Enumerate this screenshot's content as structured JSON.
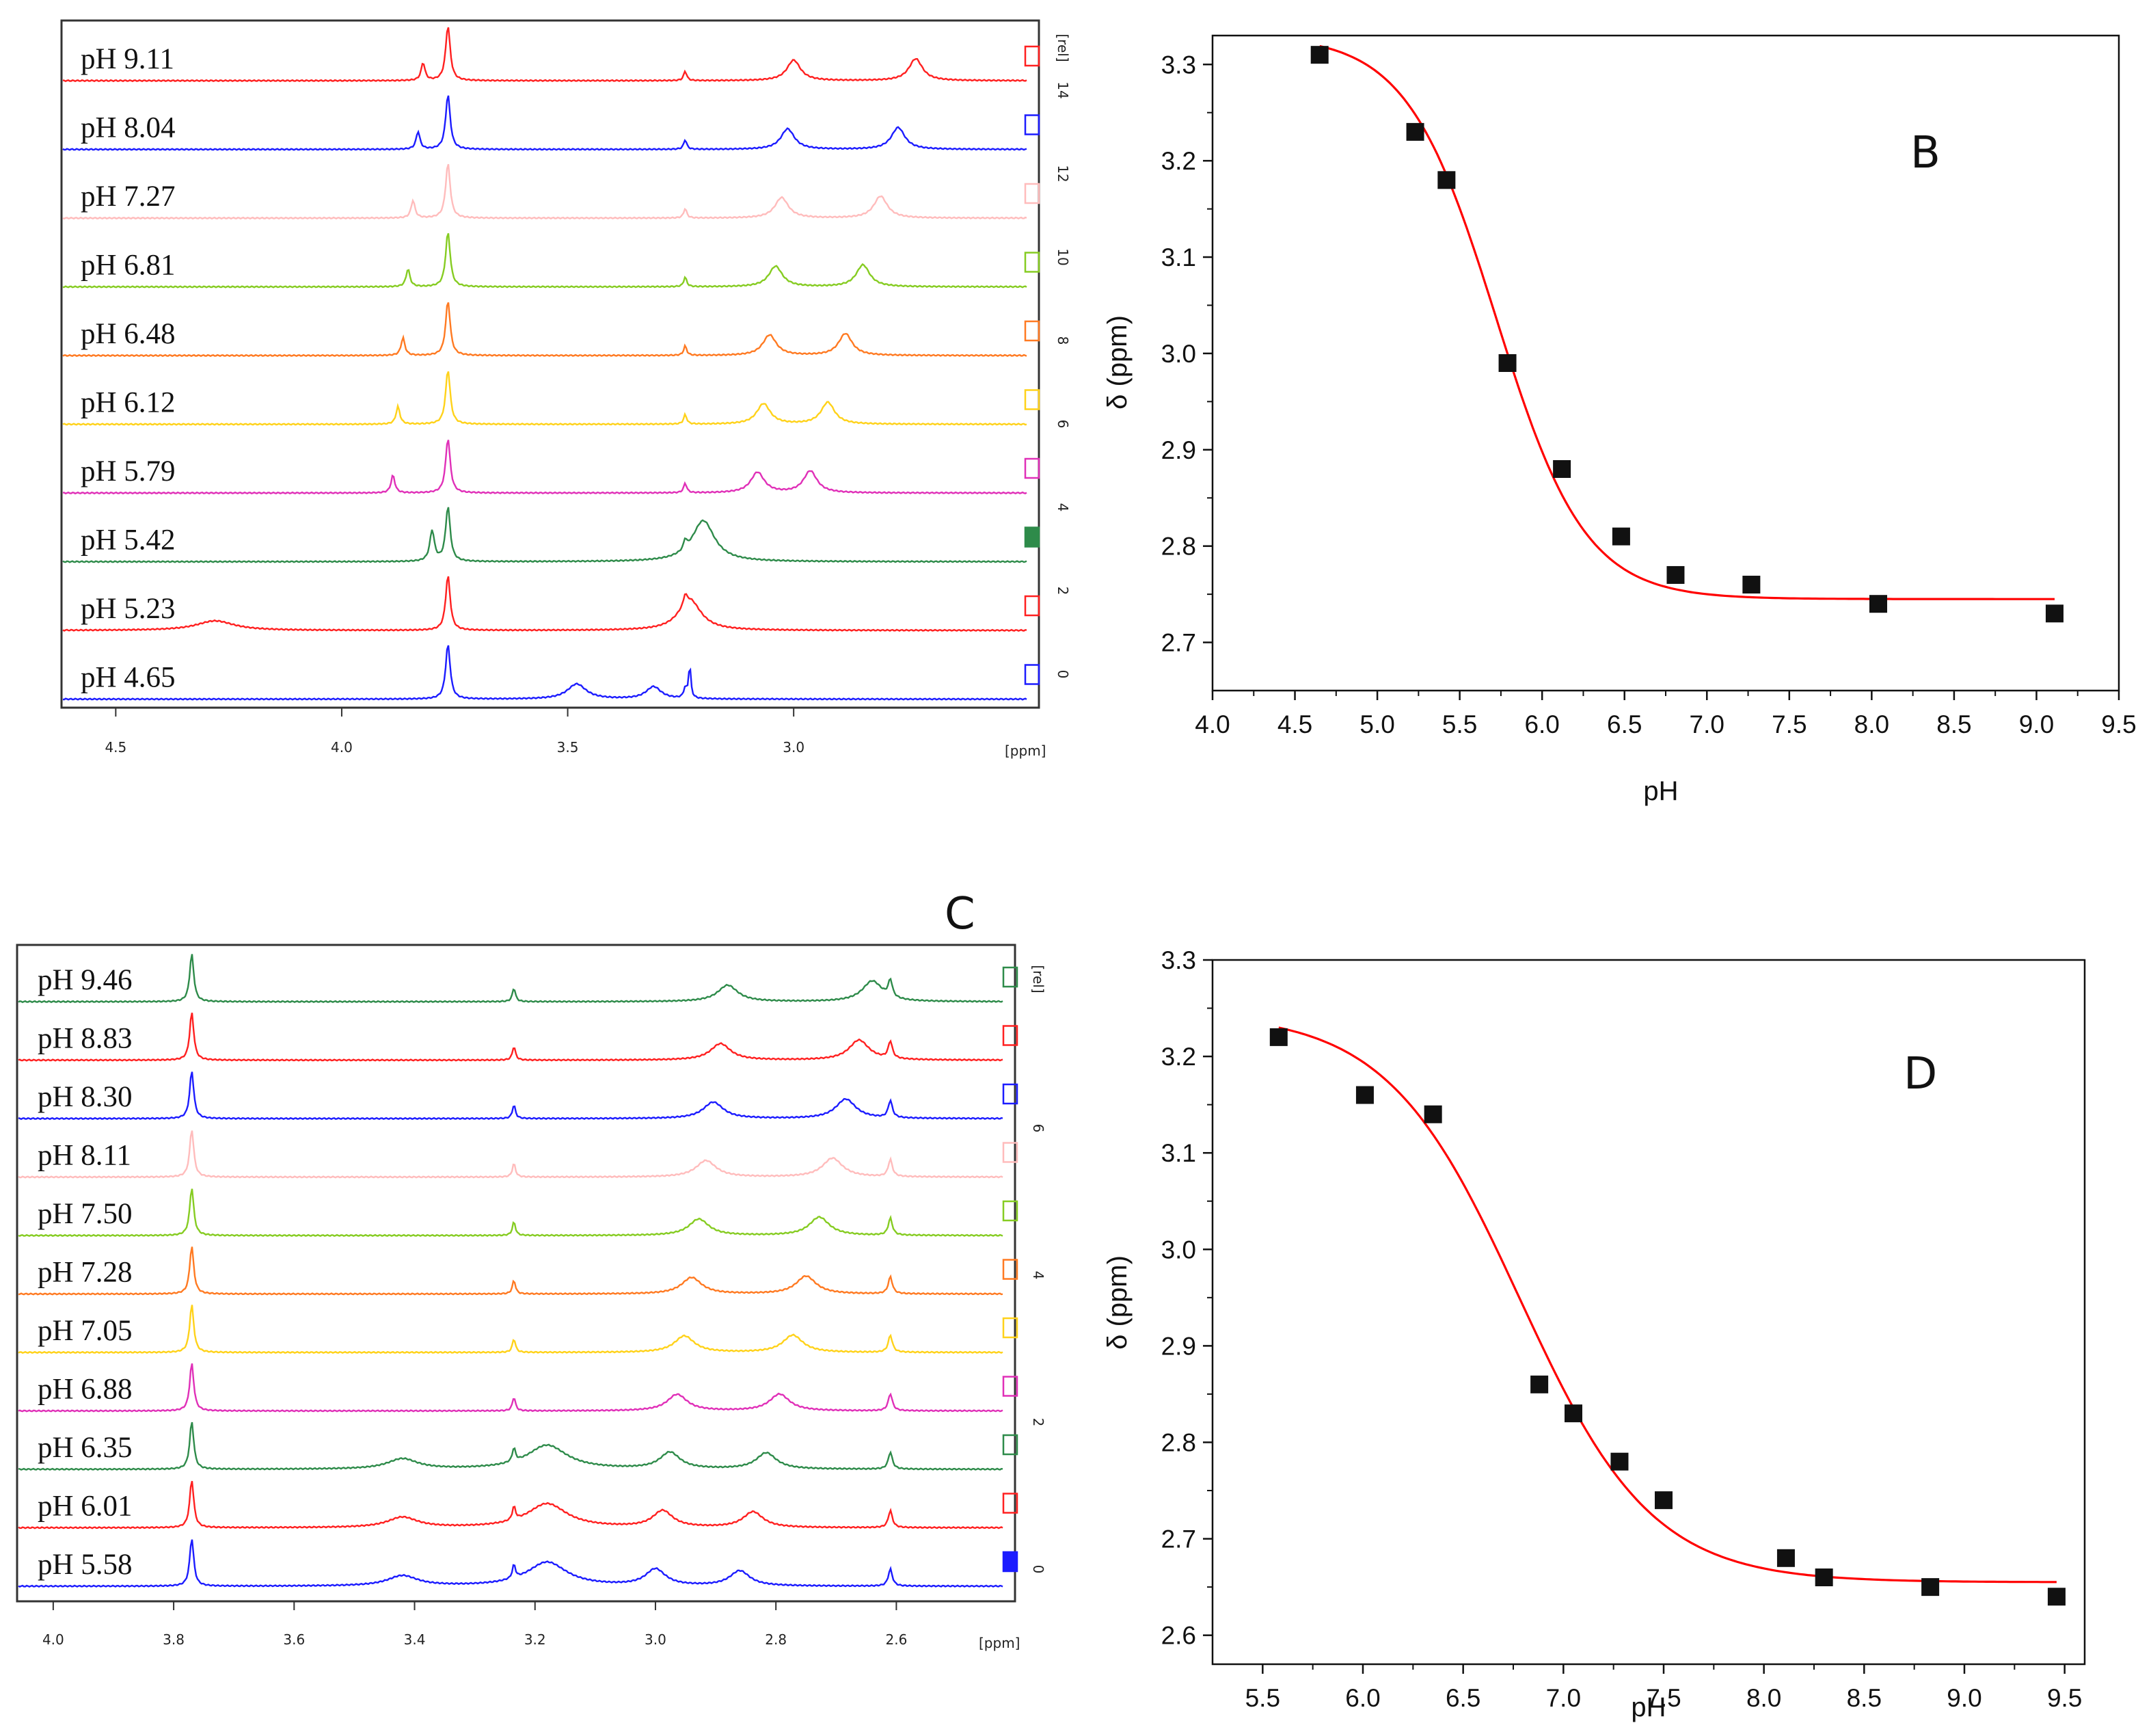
{
  "panel_a": {
    "ph_labels": [
      "pH 9.11",
      "pH 8.04",
      "pH 7.27",
      "pH 6.81",
      "pH 6.48",
      "pH 6.12",
      "pH 5.79",
      "pH 5.42",
      "pH 5.23",
      "pH 4.65"
    ],
    "colors": [
      "#ff2020",
      "#1c1cff",
      "#ffbcbc",
      "#86cc22",
      "#ff7a22",
      "#ffd21a",
      "#e030b8",
      "#2e8b4a",
      "#ff2020",
      "#1c1cff"
    ],
    "x_ticks": [
      "4.5",
      "4.0",
      "3.5",
      "3.0"
    ],
    "x_unit": "[ppm]",
    "right_scale_ticks": [
      "14",
      "12",
      "10",
      "8",
      "6",
      "4",
      "2",
      "0"
    ],
    "right_scale_unit": "[rel]"
  },
  "panel_c": {
    "letter": "C",
    "ph_labels": [
      "pH 9.46",
      "pH 8.83",
      "pH 8.30",
      "pH 8.11",
      "pH 7.50",
      "pH 7.28",
      "pH 7.05",
      "pH 6.88",
      "pH 6.35",
      "pH 6.01",
      "pH 5.58"
    ],
    "colors": [
      "#2e8b4a",
      "#ff2020",
      "#1c1cff",
      "#ffbcbc",
      "#86cc22",
      "#ff7a22",
      "#ffd21a",
      "#e030b8",
      "#2e8b4a",
      "#ff2020",
      "#1c1cff"
    ],
    "x_ticks": [
      "4.0",
      "3.8",
      "3.6",
      "3.4",
      "3.2",
      "3.0",
      "2.8",
      "2.6"
    ],
    "x_unit": "[ppm]",
    "right_scale_ticks": [
      "6",
      "4",
      "2",
      "0"
    ],
    "right_scale_unit": "[rel]"
  },
  "chart_data": [
    {
      "type": "scatter",
      "panel": "B",
      "xlabel": "pH",
      "ylabel": "δ (ppm)",
      "xlim": [
        4.0,
        9.5
      ],
      "ylim": [
        2.65,
        3.33
      ],
      "x_ticks": [
        "4.0",
        "4.5",
        "5.0",
        "5.5",
        "6.0",
        "6.5",
        "7.0",
        "7.5",
        "8.0",
        "8.5",
        "9.0",
        "9.5"
      ],
      "y_ticks": [
        "2.7",
        "2.8",
        "2.9",
        "3.0",
        "3.1",
        "3.2",
        "3.3"
      ],
      "x": [
        4.65,
        5.23,
        5.42,
        5.79,
        6.12,
        6.48,
        6.81,
        7.27,
        8.04,
        9.11
      ],
      "y": [
        3.31,
        3.23,
        3.18,
        2.99,
        2.88,
        2.81,
        2.77,
        2.76,
        2.74,
        2.73
      ],
      "fit": {
        "type": "sigmoid",
        "top": 3.33,
        "bottom": 2.745,
        "pKa": 5.72,
        "slope": 0.27,
        "x_range": [
          4.65,
          9.11
        ],
        "color": "#ff0000"
      }
    },
    {
      "type": "scatter",
      "panel": "D",
      "xlabel": "pH",
      "ylabel": "δ (ppm)",
      "xlim": [
        5.25,
        9.6
      ],
      "ylim": [
        2.57,
        3.3
      ],
      "x_ticks": [
        "5.5",
        "6.0",
        "6.5",
        "7.0",
        "7.5",
        "8.0",
        "8.5",
        "9.0",
        "9.5"
      ],
      "y_ticks": [
        "2.6",
        "2.7",
        "2.8",
        "2.9",
        "3.0",
        "3.1",
        "3.2",
        "3.3"
      ],
      "x": [
        5.58,
        6.01,
        6.35,
        6.88,
        7.05,
        7.28,
        7.5,
        8.11,
        8.3,
        8.83,
        9.46
      ],
      "y": [
        3.22,
        3.16,
        3.14,
        2.86,
        2.83,
        2.78,
        2.74,
        2.68,
        2.66,
        2.65,
        2.64
      ],
      "fit": {
        "type": "sigmoid",
        "top": 3.245,
        "bottom": 2.655,
        "pKa": 6.78,
        "slope": 0.33,
        "x_range": [
          5.58,
          9.46
        ],
        "color": "#ff0000"
      }
    }
  ]
}
